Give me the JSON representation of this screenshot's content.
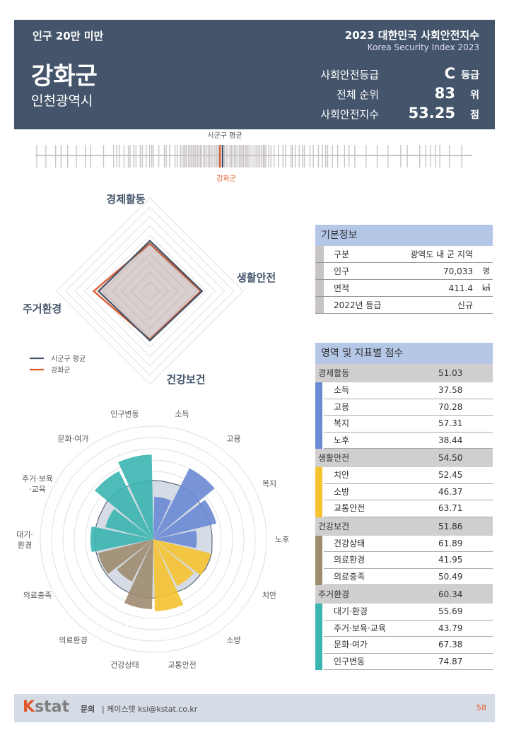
{
  "header": {
    "population_class": "인구 20만 미만",
    "name": "강화군",
    "region": "인천광역시",
    "title": "2023 대한민국 사회안전지수",
    "subtitle": "Korea Security Index 2023",
    "stats": [
      {
        "label": "사회안전등급",
        "value": "C",
        "unit": "등급"
      },
      {
        "label": "전체 순위",
        "value": "83",
        "unit": "위"
      },
      {
        "label": "사회안전지수",
        "value": "53.25",
        "unit": "점"
      }
    ]
  },
  "strip": {
    "avg_label": "시군구 평균",
    "self_label": "강화군",
    "avg_color": "#44546a",
    "self_color": "#e0582a"
  },
  "chart_data": [
    {
      "type": "radar",
      "axes": [
        "경제활동",
        "생활안전",
        "건강보건",
        "주거환경"
      ],
      "series": [
        {
          "name": "시군구 평균",
          "values": [
            54,
            56,
            53,
            55
          ],
          "color": "#44546a"
        },
        {
          "name": "강화군",
          "values": [
            51.03,
            54.5,
            51.86,
            60.34
          ],
          "color": "#e0582a"
        }
      ],
      "range": [
        0,
        100
      ]
    },
    {
      "type": "polar-bar",
      "categories": [
        "소득",
        "고용",
        "복지",
        "노후",
        "치안",
        "소방",
        "교통안전",
        "건강상태",
        "의료환경",
        "의료충족",
        "대기·환경",
        "주거·보육·교육",
        "문화·여가",
        "인구변동"
      ],
      "labels": [
        "소득",
        "고용",
        "복지",
        "노후",
        "치안",
        "소방",
        "교통안전",
        "건강상태",
        "의료환경",
        "의료충족",
        "대기·\n환경",
        "주거·보육\n·교육",
        "문화·여가",
        "인구변동"
      ],
      "values": [
        37.58,
        70.28,
        57.31,
        38.44,
        52.45,
        46.37,
        63.71,
        61.89,
        41.95,
        50.49,
        55.69,
        43.79,
        67.38,
        74.87
      ],
      "average": [
        52,
        53,
        52,
        52,
        53,
        52,
        51,
        52,
        52,
        52,
        52,
        52,
        53,
        52
      ],
      "colors": [
        "#6a8ad4",
        "#6a8ad4",
        "#6a8ad4",
        "#6a8ad4",
        "#f5c330",
        "#f5c330",
        "#f5c330",
        "#9e8c70",
        "#9e8c70",
        "#9e8c70",
        "#3bb5b0",
        "#3bb5b0",
        "#3bb5b0",
        "#3bb5b0"
      ],
      "range": [
        0,
        100
      ]
    }
  ],
  "basic": {
    "title": "기본정보",
    "rows": [
      {
        "k": "구분",
        "v": "광역도 내 군 지역",
        "u": ""
      },
      {
        "k": "인구",
        "v": "70,033",
        "u": "명"
      },
      {
        "k": "면적",
        "v": "411.4",
        "u": "㎢"
      },
      {
        "k": "2022년 등급",
        "v": "신규",
        "u": ""
      }
    ]
  },
  "scores": {
    "title": "영역 및 지표별 점수",
    "groups": [
      {
        "name": "경제활동",
        "score": "51.03",
        "color": "#6a8ad4",
        "items": [
          {
            "k": "소득",
            "v": "37.58"
          },
          {
            "k": "고용",
            "v": "70.28"
          },
          {
            "k": "복지",
            "v": "57.31"
          },
          {
            "k": "노후",
            "v": "38.44"
          }
        ]
      },
      {
        "name": "생활안전",
        "score": "54.50",
        "color": "#f5c330",
        "items": [
          {
            "k": "치안",
            "v": "52.45"
          },
          {
            "k": "소방",
            "v": "46.37"
          },
          {
            "k": "교통안전",
            "v": "63.71"
          }
        ]
      },
      {
        "name": "건강보건",
        "score": "51.86",
        "color": "#9e8c70",
        "items": [
          {
            "k": "건강상태",
            "v": "61.89"
          },
          {
            "k": "의료환경",
            "v": "41.95"
          },
          {
            "k": "의료충족",
            "v": "50.49"
          }
        ]
      },
      {
        "name": "주거환경",
        "score": "60.34",
        "color": "#3bb5b0",
        "items": [
          {
            "k": "대기·환경",
            "v": "55.69"
          },
          {
            "k": "주거·보육·교육",
            "v": "43.79"
          },
          {
            "k": "문화·여가",
            "v": "67.38"
          },
          {
            "k": "인구변동",
            "v": "74.87"
          }
        ]
      }
    ]
  },
  "footer": {
    "logo": "Kstat",
    "contact_label": "문의",
    "contact": "| 케이스탯 ksi@kstat.co.kr",
    "page": "58"
  }
}
